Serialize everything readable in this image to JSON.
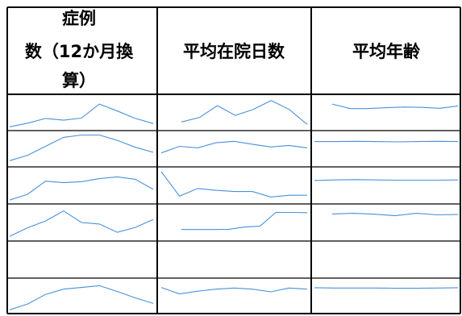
{
  "header": {
    "col1": [
      "症例",
      "数（12か月換",
      "算）"
    ],
    "col2": "平均在院日数",
    "col3": "平均年齢"
  },
  "colors": {
    "line": "#4a90d9",
    "border": "#000000"
  },
  "chart_data": {
    "type": "line",
    "columns": [
      "症例数（12か月換算）",
      "平均在院日数",
      "平均年齢"
    ],
    "rows": [
      [
        {
          "values": [
            2,
            14,
            30,
            24,
            31,
            78,
            55,
            30,
            13
          ],
          "ylim": [
            0,
            100
          ]
        },
        {
          "values": [
            18,
            33,
            73,
            40,
            60,
            90,
            60,
            10
          ],
          "ylim": [
            0,
            100
          ]
        },
        {
          "values": [
            78,
            63,
            63,
            66,
            68,
            67,
            64,
            72
          ],
          "ylim": [
            0,
            100
          ]
        }
      ],
      [
        {
          "values": [
            10,
            28,
            58,
            88,
            96,
            96,
            78,
            55,
            38
          ],
          "ylim": [
            0,
            100
          ]
        },
        {
          "values": [
            36,
            58,
            53,
            70,
            75,
            65,
            56,
            61,
            53
          ],
          "ylim": [
            0,
            100
          ]
        },
        {
          "values": [
            74,
            74,
            75,
            74,
            73,
            74,
            75,
            74
          ],
          "ylim": [
            0,
            100
          ]
        }
      ],
      [
        {
          "values": [
            2,
            21,
            64,
            59,
            62,
            72,
            78,
            70,
            37
          ],
          "ylim": [
            0,
            100
          ]
        },
        {
          "values": [
            95,
            15,
            40,
            34,
            30,
            30,
            12,
            18,
            18
          ],
          "ylim": [
            0,
            100
          ]
        },
        {
          "values": [
            66,
            68,
            69,
            68,
            67,
            67,
            67,
            68
          ],
          "ylim": [
            0,
            100
          ]
        }
      ],
      [
        {
          "values": [
            5,
            33,
            55,
            88,
            50,
            45,
            18,
            34,
            60
          ],
          "ylim": [
            0,
            100
          ]
        },
        {
          "values": [
            27,
            27,
            27,
            28,
            35,
            38,
            83,
            83,
            82
          ],
          "ylim": [
            0,
            100
          ]
        },
        {
          "values": [
            78,
            80,
            77,
            72,
            80,
            75,
            76
          ],
          "ylim": [
            0,
            100
          ]
        }
      ],
      [
        {
          "values": [],
          "ylim": [
            0,
            100
          ]
        },
        {
          "values": [],
          "ylim": [
            0,
            100
          ]
        },
        {
          "values": [],
          "ylim": [
            0,
            100
          ]
        }
      ],
      [
        {
          "values": [
            2,
            22,
            55,
            73,
            79,
            85,
            65,
            43,
            24
          ],
          "ylim": [
            0,
            100
          ]
        },
        {
          "values": [
            79,
            57,
            66,
            73,
            77,
            73,
            64,
            77,
            73
          ],
          "ylim": [
            0,
            100
          ]
        },
        {
          "values": [
            78,
            77,
            77,
            77,
            76,
            76,
            77,
            78
          ],
          "ylim": [
            0,
            100
          ]
        }
      ]
    ]
  }
}
